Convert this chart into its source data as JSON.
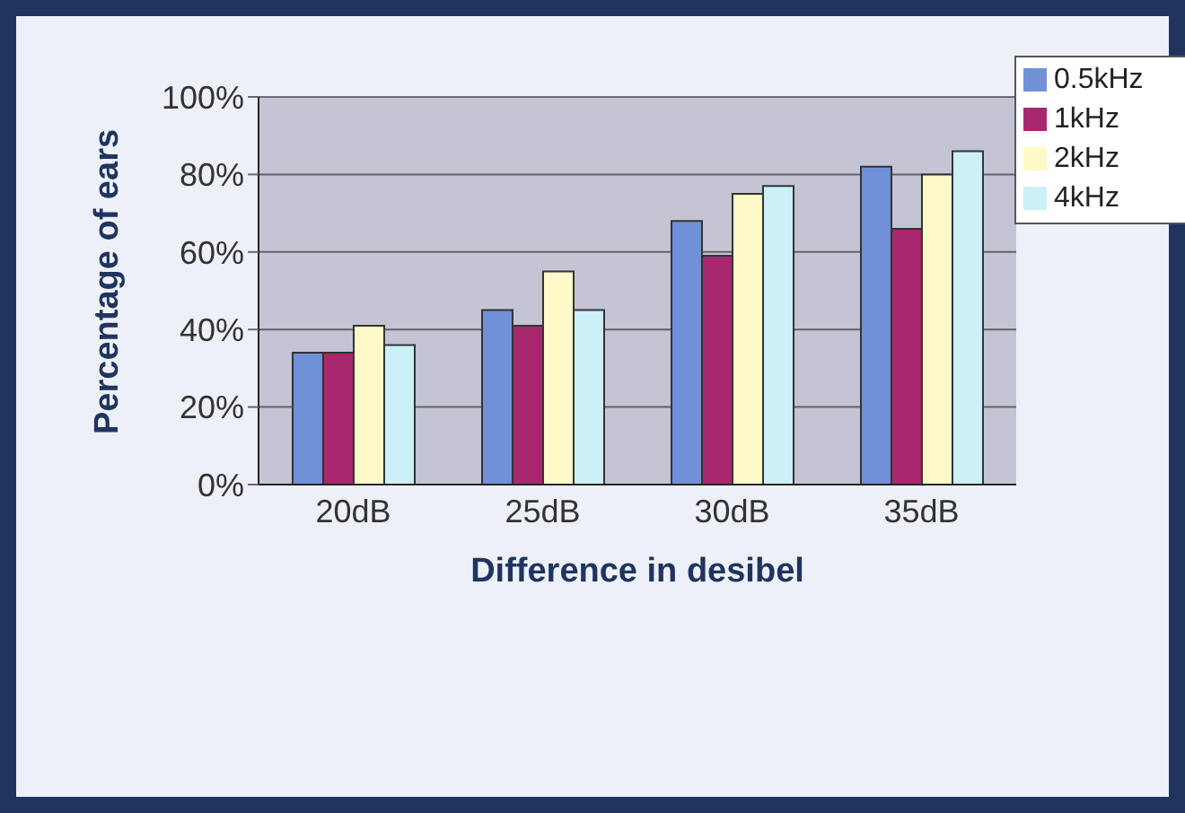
{
  "chart_data": {
    "type": "bar",
    "xlabel": "Difference in desibel",
    "ylabel": "Percentage of ears",
    "categories": [
      "20dB",
      "25dB",
      "30dB",
      "35dB"
    ],
    "series": [
      {
        "name": "0.5kHz",
        "color": "#7090d8",
        "values": [
          34,
          45,
          68,
          82
        ]
      },
      {
        "name": "1kHz",
        "color": "#a8286e",
        "values": [
          34,
          41,
          59,
          66
        ]
      },
      {
        "name": "2kHz",
        "color": "#fff8c8",
        "values": [
          41,
          55,
          75,
          80
        ]
      },
      {
        "name": "4kHz",
        "color": "#ccf0f8",
        "values": [
          36,
          45,
          77,
          86
        ]
      }
    ],
    "ylim": [
      0,
      100
    ],
    "yticks": [
      {
        "value": 0,
        "label": "0%"
      },
      {
        "value": 20,
        "label": "20%"
      },
      {
        "value": 40,
        "label": "40%"
      },
      {
        "value": 60,
        "label": "60%"
      },
      {
        "value": 80,
        "label": "80%"
      },
      {
        "value": 100,
        "label": "100%"
      }
    ],
    "grid": "y",
    "legend": "top right"
  }
}
